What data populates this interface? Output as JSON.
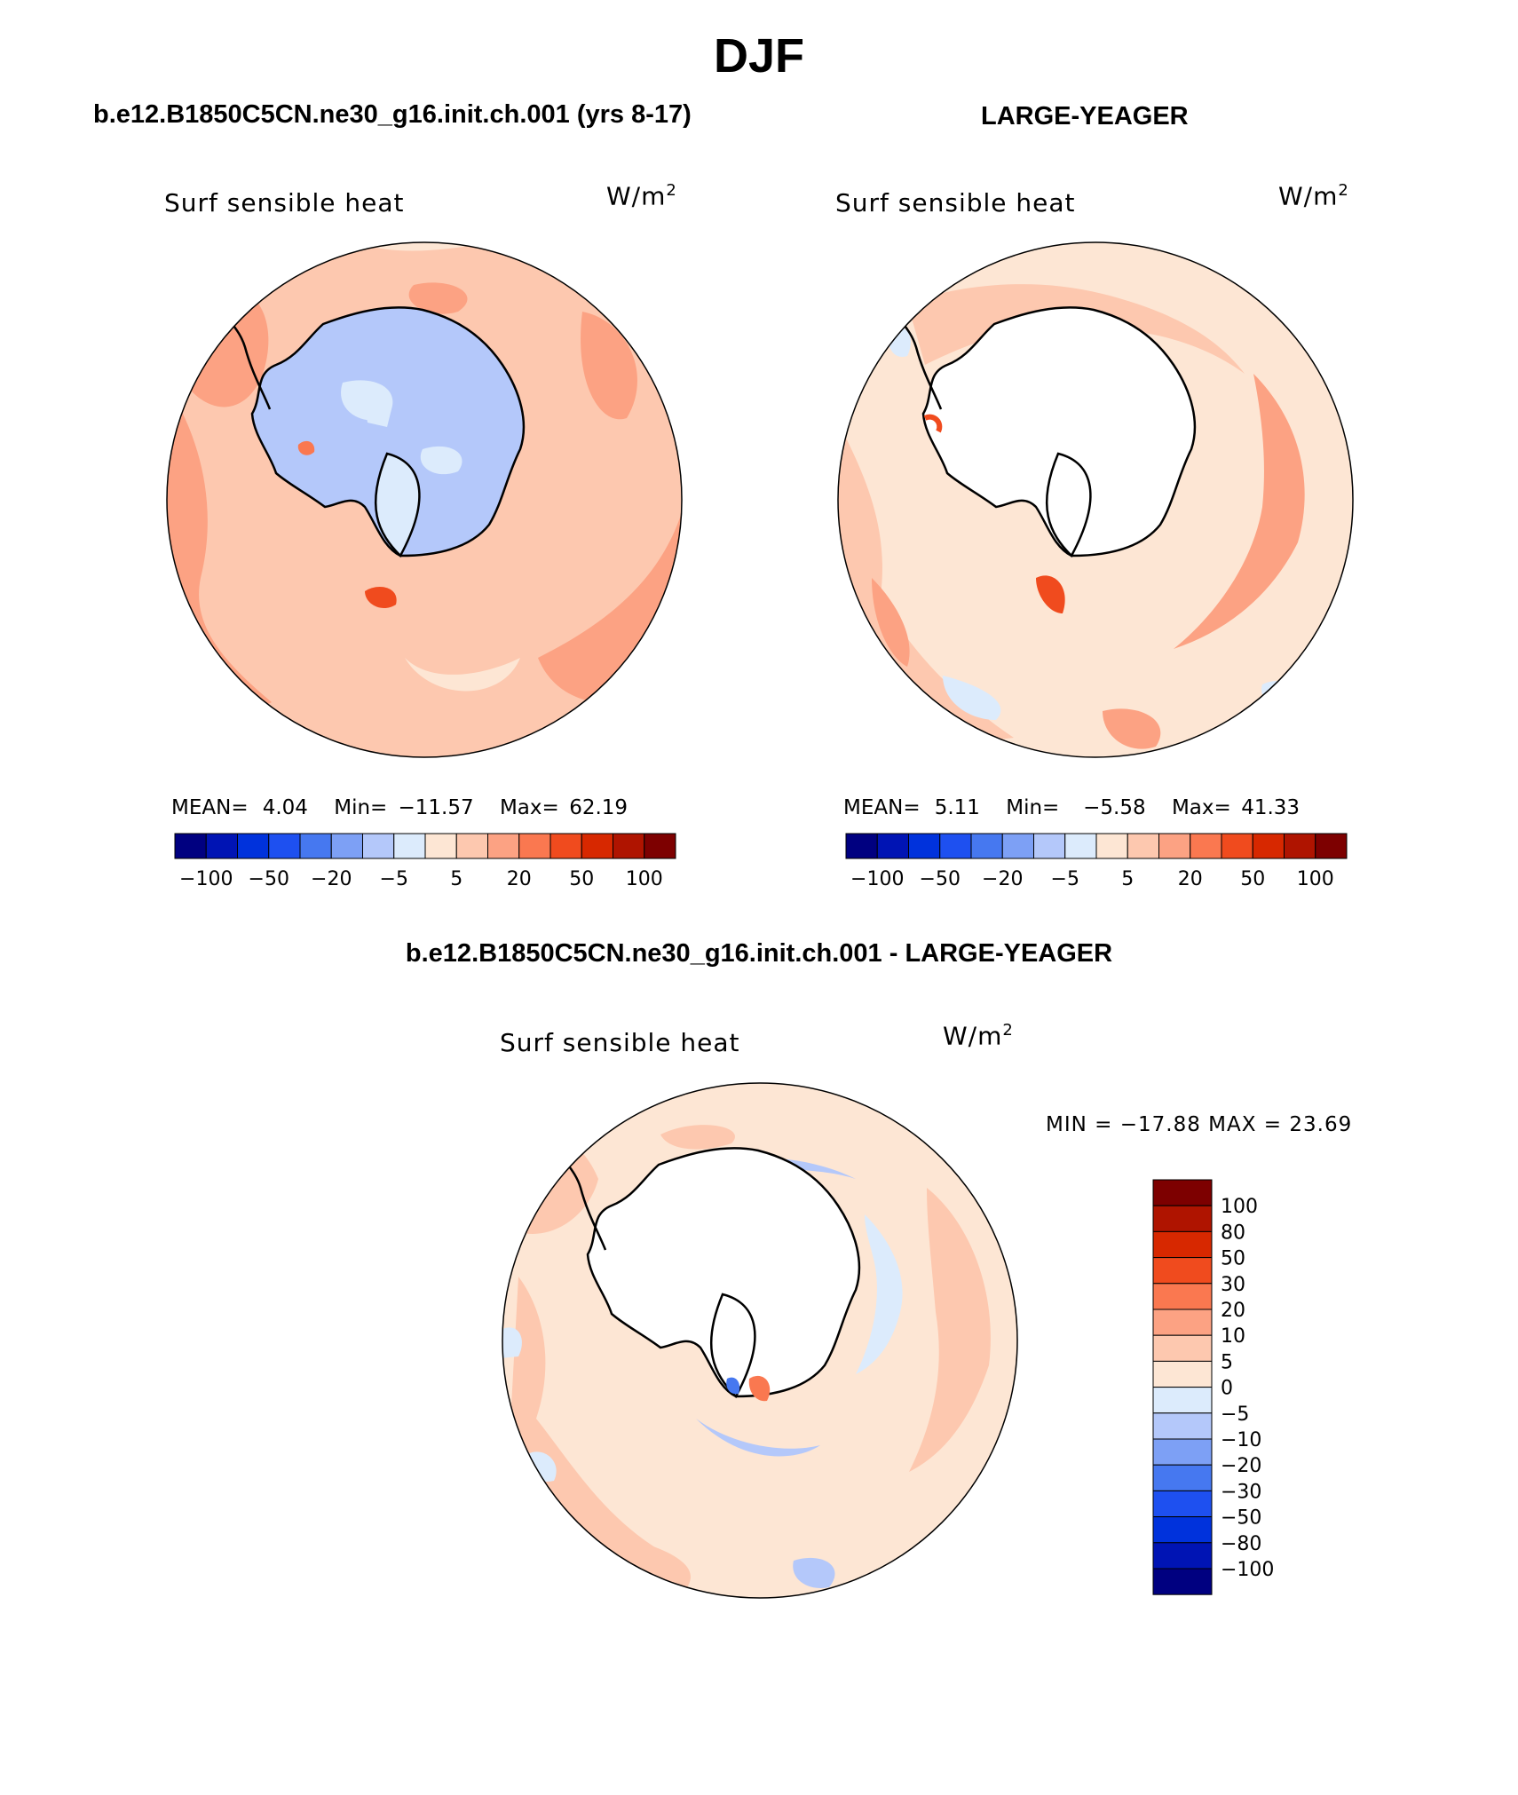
{
  "main_title": "DJF",
  "panel_left": {
    "case_title": "b.e12.B1850C5CN.ne30_g16.init.ch.001 (yrs 8-17)",
    "variable": "Surf sensible heat",
    "units_base": "W/m",
    "units_exp": "2",
    "stats": {
      "mean_label": "MEAN=",
      "mean": "4.04",
      "min_label": "Min=",
      "min": "−11.57",
      "max_label": "Max=",
      "max": "62.19"
    }
  },
  "panel_right": {
    "case_title": "LARGE-YEAGER",
    "variable": "Surf sensible heat",
    "units_base": "W/m",
    "units_exp": "2",
    "stats": {
      "mean_label": "MEAN=",
      "mean": "5.11",
      "min_label": "Min=",
      "min": "−5.58",
      "max_label": "Max=",
      "max": "41.33"
    }
  },
  "panel_diff": {
    "case_title": "b.e12.B1850C5CN.ne30_g16.init.ch.001 - LARGE-YEAGER",
    "variable": "Surf sensible heat",
    "units_base": "W/m",
    "units_exp": "2",
    "minmax": "MIN = −17.88 MAX =   23.69"
  },
  "colorbar_horizontal": {
    "colors": [
      "#000080",
      "#0014B4",
      "#0032DC",
      "#1E50F0",
      "#4678F0",
      "#7DA0F5",
      "#B4C8FA",
      "#DCEBFC",
      "#FDE6D4",
      "#FDC8AF",
      "#FCA283",
      "#FA7850",
      "#F04B1E",
      "#D72800",
      "#AF1400",
      "#7D0000"
    ],
    "labels": [
      "−100",
      "−50",
      "−20",
      "−5",
      "5",
      "20",
      "50",
      "100"
    ]
  },
  "colorbar_vertical": {
    "colors_top_to_bottom": [
      "#7D0000",
      "#AF1400",
      "#D72800",
      "#F04B1E",
      "#FA7850",
      "#FCA283",
      "#FDC8AF",
      "#FDE6D4",
      "#DCEBFC",
      "#B4C8FA",
      "#7DA0F5",
      "#4678F0",
      "#1E50F0",
      "#0032DC",
      "#0014B4",
      "#000080"
    ],
    "labels_top_to_bottom": [
      "100",
      "80",
      "50",
      "30",
      "20",
      "10",
      "5",
      "0",
      "−5",
      "−10",
      "−20",
      "−30",
      "−50",
      "−80",
      "−100"
    ]
  },
  "colors": {
    "ocean_warm": "#FDC8AF",
    "ocean_light": "#FDE6D4",
    "ocean_mid": "#FCA283",
    "ice_blue": "#B4C8FA",
    "ice_light": "#DCEBFC"
  }
}
